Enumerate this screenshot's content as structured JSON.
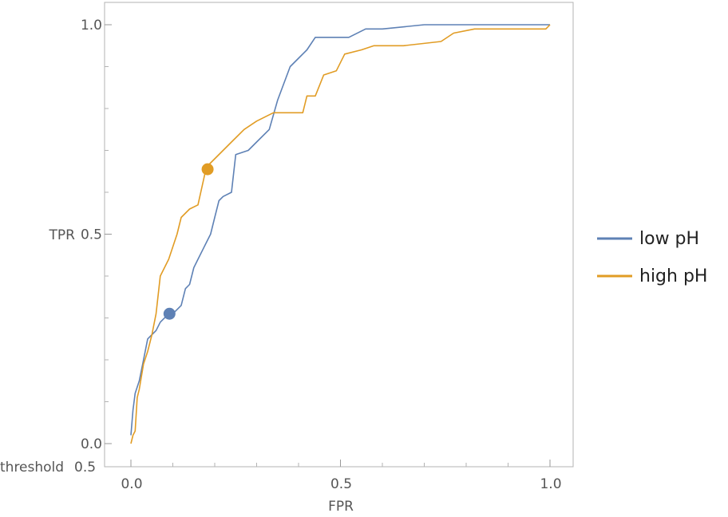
{
  "chart_data": {
    "type": "line",
    "title": "",
    "xlabel": "FPR",
    "ylabel": "TPR",
    "extra_axis_label": "threshold",
    "overlap_text": "0.5",
    "xlim": [
      0,
      1
    ],
    "ylim": [
      0,
      1
    ],
    "x_ticks": [
      {
        "value": 0,
        "label": "0.0"
      },
      {
        "value": 0.5,
        "label": "0.5"
      },
      {
        "value": 1,
        "label": "1.0"
      }
    ],
    "y_ticks": [
      {
        "value": 0,
        "label": "0.0"
      },
      {
        "value": 0.5,
        "label": "0.5"
      },
      {
        "value": 1,
        "label": "1.0"
      }
    ],
    "minor_x": [
      0.1,
      0.2,
      0.3,
      0.4,
      0.6,
      0.7,
      0.8,
      0.9
    ],
    "minor_y": [
      0.1,
      0.2,
      0.3,
      0.4,
      0.6,
      0.7,
      0.8,
      0.9
    ],
    "grid": false,
    "legend_position": "right",
    "series": [
      {
        "name": "low pH",
        "color": "#5E81B5",
        "points": [
          [
            0,
            0.02
          ],
          [
            0.005,
            0.08
          ],
          [
            0.01,
            0.12
          ],
          [
            0.02,
            0.15
          ],
          [
            0.03,
            0.2
          ],
          [
            0.04,
            0.25
          ],
          [
            0.05,
            0.26
          ],
          [
            0.06,
            0.27
          ],
          [
            0.07,
            0.29
          ],
          [
            0.09,
            0.31
          ],
          [
            0.1,
            0.31
          ],
          [
            0.12,
            0.33
          ],
          [
            0.13,
            0.37
          ],
          [
            0.14,
            0.38
          ],
          [
            0.15,
            0.42
          ],
          [
            0.16,
            0.44
          ],
          [
            0.18,
            0.48
          ],
          [
            0.19,
            0.5
          ],
          [
            0.2,
            0.54
          ],
          [
            0.21,
            0.58
          ],
          [
            0.22,
            0.59
          ],
          [
            0.24,
            0.6
          ],
          [
            0.25,
            0.69
          ],
          [
            0.28,
            0.7
          ],
          [
            0.3,
            0.72
          ],
          [
            0.33,
            0.75
          ],
          [
            0.35,
            0.82
          ],
          [
            0.38,
            0.9
          ],
          [
            0.4,
            0.92
          ],
          [
            0.42,
            0.94
          ],
          [
            0.44,
            0.97
          ],
          [
            0.52,
            0.97
          ],
          [
            0.56,
            0.99
          ],
          [
            0.6,
            0.99
          ],
          [
            0.7,
            1.0
          ],
          [
            1.0,
            1.0
          ]
        ]
      },
      {
        "name": "high pH",
        "color": "#E19C24",
        "points": [
          [
            0,
            0.0
          ],
          [
            0.005,
            0.02
          ],
          [
            0.01,
            0.03
          ],
          [
            0.015,
            0.11
          ],
          [
            0.02,
            0.13
          ],
          [
            0.03,
            0.19
          ],
          [
            0.04,
            0.22
          ],
          [
            0.05,
            0.26
          ],
          [
            0.06,
            0.31
          ],
          [
            0.07,
            0.4
          ],
          [
            0.09,
            0.44
          ],
          [
            0.11,
            0.5
          ],
          [
            0.12,
            0.54
          ],
          [
            0.14,
            0.56
          ],
          [
            0.16,
            0.57
          ],
          [
            0.18,
            0.66
          ],
          [
            0.2,
            0.68
          ],
          [
            0.24,
            0.72
          ],
          [
            0.27,
            0.75
          ],
          [
            0.3,
            0.77
          ],
          [
            0.34,
            0.79
          ],
          [
            0.41,
            0.79
          ],
          [
            0.42,
            0.83
          ],
          [
            0.44,
            0.83
          ],
          [
            0.46,
            0.88
          ],
          [
            0.49,
            0.89
          ],
          [
            0.51,
            0.93
          ],
          [
            0.55,
            0.94
          ],
          [
            0.58,
            0.95
          ],
          [
            0.65,
            0.95
          ],
          [
            0.74,
            0.96
          ],
          [
            0.77,
            0.98
          ],
          [
            0.82,
            0.99
          ],
          [
            0.99,
            0.99
          ],
          [
            1.0,
            1.0
          ]
        ]
      }
    ],
    "markers": [
      {
        "series": "low pH",
        "color": "#5E81B5",
        "x": 0.092,
        "y": 0.31
      },
      {
        "series": "high pH",
        "color": "#E19C24",
        "x": 0.183,
        "y": 0.655
      }
    ]
  }
}
